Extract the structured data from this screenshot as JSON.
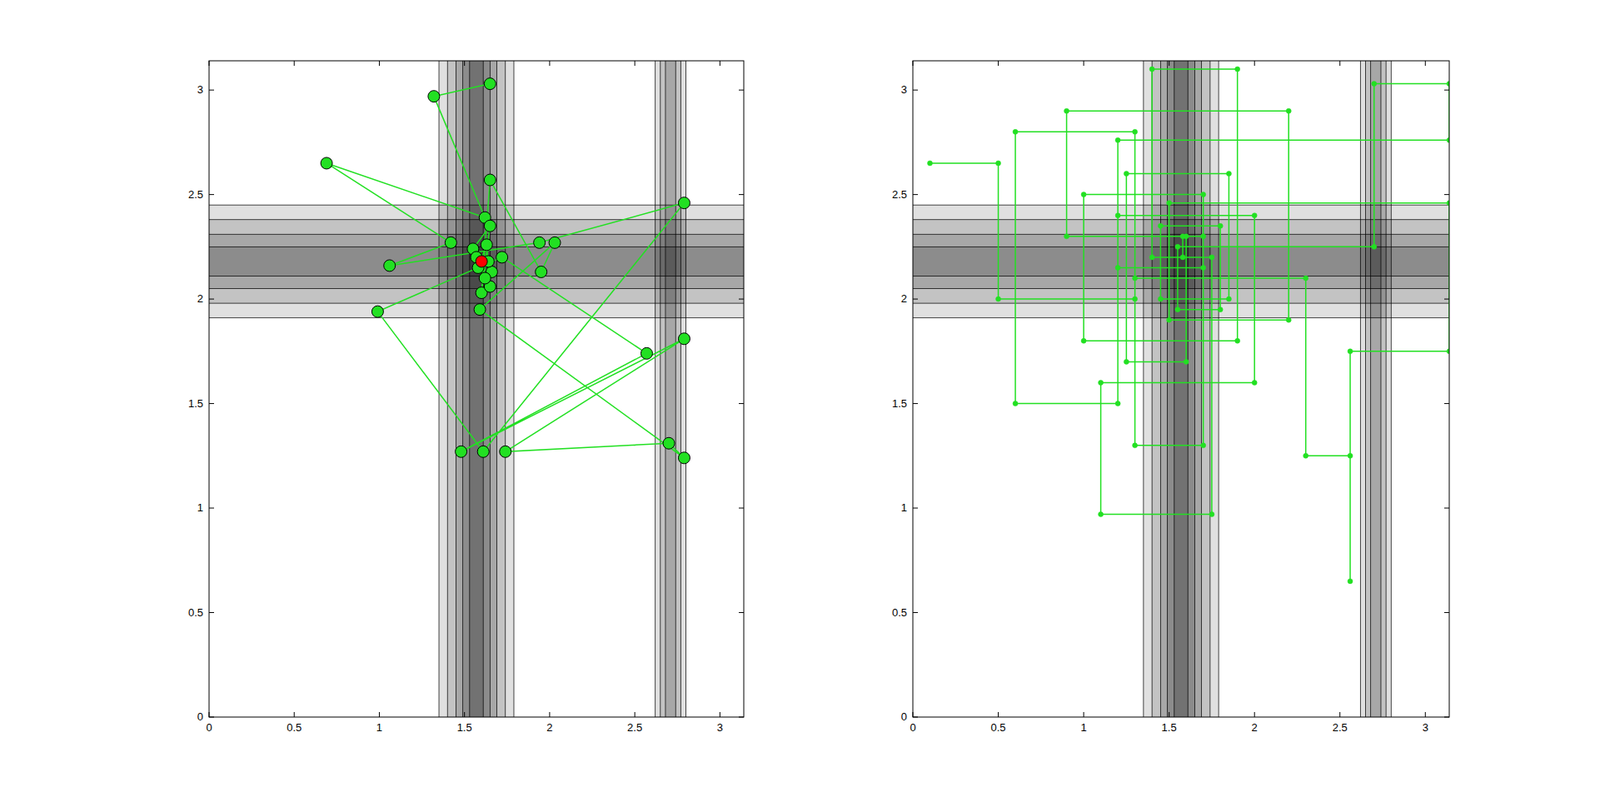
{
  "chart_data": [
    {
      "type": "scatter",
      "xlim": [
        0,
        3.14
      ],
      "ylim": [
        0,
        3.14
      ],
      "xticks": [
        0,
        0.5,
        1,
        1.5,
        2,
        2.5,
        3
      ],
      "yticks": [
        0,
        0.5,
        1,
        1.5,
        2,
        2.5,
        3
      ],
      "grid": false,
      "contour_bands": [
        {
          "orientation": "vertical",
          "center": 1.57,
          "half_widths": [
            0.22,
            0.17,
            0.12,
            0.08,
            0.04
          ]
        },
        {
          "orientation": "vertical",
          "center": 2.71,
          "half_widths": [
            0.09,
            0.06,
            0.03
          ]
        },
        {
          "orientation": "horizontal",
          "center": 2.18,
          "half_widths": [
            0.27,
            0.2,
            0.13,
            0.07
          ]
        }
      ],
      "series": [
        {
          "color": "#22e022",
          "marker": "circle",
          "line_style": "solid",
          "x": [
            1.65,
            1.32,
            1.62,
            0.69,
            1.42,
            1.06,
            1.94,
            2.79,
            1.61,
            0.99,
            1.72,
            2.57,
            1.48,
            2.79,
            1.74,
            2.7,
            2.79,
            1.59,
            2.03,
            1.95,
            1.65,
            1.6,
            1.65,
            1.55,
            1.65,
            1.63,
            1.58,
            1.66,
            1.62,
            1.57,
            1.64
          ],
          "values": [
            3.03,
            2.97,
            2.39,
            2.65,
            2.27,
            2.16,
            2.27,
            2.46,
            1.27,
            1.94,
            2.2,
            1.74,
            1.27,
            1.81,
            1.27,
            1.31,
            1.24,
            1.95,
            2.27,
            2.13,
            2.57,
            2.03,
            2.35,
            2.24,
            2.06,
            2.26,
            2.15,
            2.13,
            2.1,
            2.2,
            2.18
          ]
        },
        {
          "color": "#ff0000",
          "marker": "circle",
          "line_style": "none",
          "x": [
            1.6
          ],
          "values": [
            2.18
          ]
        }
      ]
    },
    {
      "type": "scatter",
      "xlim": [
        0,
        3.14
      ],
      "ylim": [
        0,
        3.14
      ],
      "xticks": [
        0,
        0.5,
        1,
        1.5,
        2,
        2.5,
        3
      ],
      "yticks": [
        0,
        0.5,
        1,
        1.5,
        2,
        2.5,
        3
      ],
      "grid": false,
      "contour_bands": [
        {
          "orientation": "vertical",
          "center": 1.57,
          "half_widths": [
            0.22,
            0.17,
            0.12,
            0.08,
            0.04
          ]
        },
        {
          "orientation": "vertical",
          "center": 2.71,
          "half_widths": [
            0.09,
            0.06,
            0.03
          ]
        },
        {
          "orientation": "horizontal",
          "center": 2.18,
          "half_widths": [
            0.27,
            0.2,
            0.13,
            0.07
          ]
        }
      ],
      "series": [
        {
          "color": "#22e022",
          "marker": "dot",
          "line_style": "solid",
          "x": [
            0.1,
            0.5,
            0.5,
            1.3,
            1.3,
            0.6,
            0.6,
            1.2,
            1.2,
            2.0,
            2.0,
            1.1,
            1.1,
            1.75,
            1.75,
            1.4,
            1.4,
            1.9,
            1.9,
            1.0,
            1.0,
            1.7,
            1.7,
            1.3,
            1.3,
            2.3,
            2.3,
            2.56,
            2.56,
            2.56,
            3.14,
            3.14,
            1.5,
            1.5,
            2.2,
            2.2,
            0.9,
            0.9,
            1.6,
            1.6,
            1.25,
            1.25,
            1.85,
            1.85,
            1.45,
            1.45,
            1.8,
            1.8,
            1.55,
            1.55,
            2.7,
            2.7,
            3.14,
            3.14,
            1.2,
            1.2,
            1.7,
            1.7,
            1.58,
            1.58
          ],
          "values": [
            2.65,
            2.65,
            2.0,
            2.0,
            2.8,
            2.8,
            1.5,
            1.5,
            2.4,
            2.4,
            1.6,
            1.6,
            0.97,
            0.97,
            2.2,
            2.2,
            3.1,
            3.1,
            1.8,
            1.8,
            2.5,
            2.5,
            1.3,
            1.3,
            2.1,
            2.1,
            1.25,
            1.25,
            0.65,
            1.75,
            1.75,
            2.46,
            2.46,
            1.9,
            1.9,
            2.9,
            2.9,
            2.3,
            2.3,
            1.7,
            1.7,
            2.6,
            2.6,
            2.0,
            2.0,
            2.35,
            2.35,
            1.95,
            1.95,
            2.25,
            2.25,
            3.03,
            3.03,
            2.76,
            2.76,
            2.15,
            2.15,
            2.3,
            2.3,
            2.2
          ]
        }
      ]
    }
  ]
}
